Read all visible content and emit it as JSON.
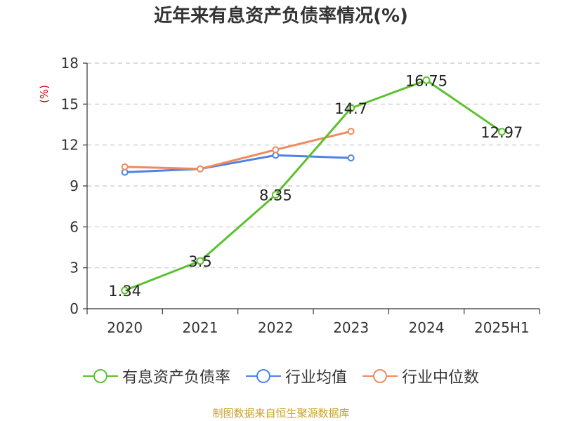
{
  "title": "近年来有息资产负债率情况(%)",
  "unit_label": "(%)",
  "source": "制图数据来自恒生聚源数据库",
  "chart_data": {
    "type": "line",
    "x": [
      "2020",
      "2021",
      "2022",
      "2023",
      "2024",
      "2025H1"
    ],
    "y_ticks": [
      0,
      3,
      6,
      9,
      12,
      15,
      18
    ],
    "ylim": [
      0,
      18
    ],
    "grid": true,
    "legend_position": "bottom",
    "series": [
      {
        "name": "有息资产负债率",
        "color": "#5cc12e",
        "values": [
          1.34,
          3.5,
          8.35,
          14.7,
          16.75,
          12.97
        ],
        "labels": [
          "1.34",
          "3.5",
          "8.35",
          "14.7",
          "16.75",
          "12.97"
        ]
      },
      {
        "name": "行业均值",
        "color": "#4f82e6",
        "values": [
          10.0,
          10.25,
          11.25,
          11.05,
          null,
          null
        ]
      },
      {
        "name": "行业中位数",
        "color": "#f08a5d",
        "values": [
          10.4,
          10.25,
          11.65,
          13.0,
          null,
          null
        ]
      }
    ]
  }
}
